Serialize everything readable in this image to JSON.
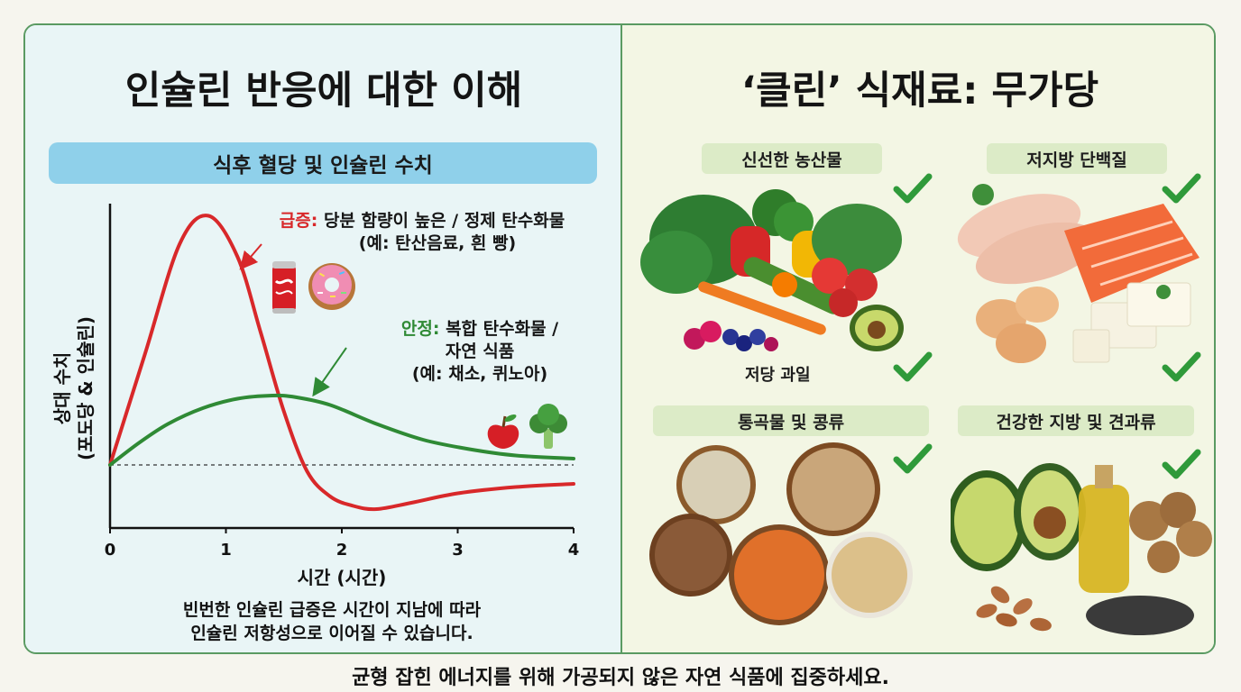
{
  "left": {
    "title": "인슐린 반응에 대한 이해",
    "chart_banner": "식후 혈당 및 인슐린 수치",
    "spike_label": "급증:",
    "spike_text": "당분 함량이 높은 / 정제 탄수화물",
    "spike_example": "(예: 탄산음료, 흰 빵)",
    "stable_label": "안정:",
    "stable_text_1": "복합 탄수화물 /",
    "stable_text_2": "자연 식품",
    "stable_example": "(예: 채소, 퀴노아)",
    "footnote_line1": "빈번한 인슐린 급증은 시간이 지남에 따라",
    "footnote_line2": "인슐린 저항성으로 이어질 수 있습니다."
  },
  "chart_data": {
    "type": "line",
    "title": "식후 혈당 및 인슐린 수치",
    "xlabel": "시간 (시간)",
    "ylabel_line1": "상대 수치",
    "ylabel_line2": "(포도당 & 인슐린)",
    "x_ticks": [
      "0",
      "1",
      "2",
      "3",
      "4"
    ],
    "xlim": [
      0,
      4
    ],
    "ylim": [
      0,
      1
    ],
    "baseline": 0.2,
    "series": [
      {
        "name": "급증",
        "color": "#d8282a",
        "x": [
          0,
          0.3,
          0.6,
          0.85,
          1.1,
          1.3,
          1.5,
          1.7,
          1.9,
          2.1,
          2.3,
          2.6,
          3.0,
          3.5,
          4.0
        ],
        "values": [
          0.2,
          0.55,
          0.9,
          0.99,
          0.86,
          0.62,
          0.37,
          0.18,
          0.1,
          0.07,
          0.06,
          0.08,
          0.11,
          0.13,
          0.14
        ]
      },
      {
        "name": "안정",
        "color": "#2f8a35",
        "x": [
          0,
          0.25,
          0.5,
          0.8,
          1.1,
          1.4,
          1.6,
          1.9,
          2.3,
          2.7,
          3.1,
          3.5,
          4.0
        ],
        "values": [
          0.2,
          0.27,
          0.33,
          0.38,
          0.41,
          0.42,
          0.415,
          0.39,
          0.33,
          0.28,
          0.25,
          0.23,
          0.22
        ]
      }
    ]
  },
  "right": {
    "title": "‘클린’ 식재료: 무가당",
    "categories": [
      {
        "label": "신선한 농산물"
      },
      {
        "label": "저지방 단백질"
      },
      {
        "label": "통곡물 및 콩류"
      },
      {
        "label": "건강한 지방 및 견과류"
      }
    ],
    "fruit_label": "저당 과일"
  },
  "footer": "균형 잡힌 에너지를 위해 가공되지 않은 자연 식품에 집중하세요.",
  "colors": {
    "spike": "#d8282a",
    "stable": "#2f8a35",
    "banner": "#8fd0ea",
    "check": "#2f9a3a"
  }
}
